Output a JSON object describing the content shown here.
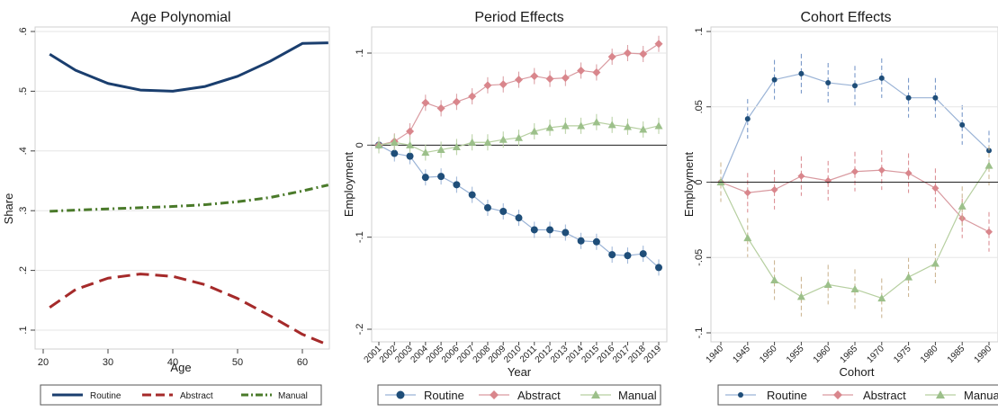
{
  "panels": [
    {
      "title": "Age Polynomial",
      "xlabel": "Age",
      "ylabel": "Share"
    },
    {
      "title": "Period Effects",
      "xlabel": "Year",
      "ylabel": "Employment"
    },
    {
      "title": "Cohort Effects",
      "xlabel": "Cohort",
      "ylabel": "Employment"
    }
  ],
  "legend_left": {
    "routine": "Routine",
    "abstract": "Abstract",
    "manual": "Manual"
  },
  "legend_mid": {
    "routine": "Routine",
    "abstract": "Abstract",
    "manual": "Manual"
  },
  "legend_right": {
    "routine": "Routine",
    "abstract": "Abstract",
    "manual": "Manual"
  },
  "colors": {
    "routine_dark": "#1a3e6e",
    "abstract_dark": "#a52a2a",
    "manual_dark": "#4a7a2a",
    "routine_light": "#9ab3d6",
    "abstract_light": "#d99aa0",
    "manual_light": "#b6cfa0",
    "routine_marker": "#1f4e79",
    "abstract_marker": "#d9868c",
    "manual_marker": "#9cc08a"
  },
  "chart_data": [
    {
      "type": "line",
      "title": "Age Polynomial",
      "xlabel": "Age",
      "ylabel": "Share",
      "xlim": [
        18,
        66
      ],
      "ylim": [
        0.07,
        0.61
      ],
      "xticks": [
        20,
        30,
        40,
        50,
        60
      ],
      "xtick_labels": [
        "20",
        "30",
        "40",
        "50",
        "60"
      ],
      "yticks": [
        0.1,
        0.2,
        0.3,
        0.4,
        0.5,
        0.6
      ],
      "ytick_labels": [
        ".1",
        ".2",
        ".3",
        ".4",
        ".5",
        ".6"
      ],
      "grid": true,
      "legend": "bottom",
      "x": [
        21,
        25,
        30,
        35,
        40,
        45,
        50,
        55,
        60,
        64
      ],
      "series": [
        {
          "name": "Routine",
          "values": [
            0.562,
            0.535,
            0.513,
            0.502,
            0.5,
            0.508,
            0.525,
            0.55,
            0.58,
            0.581
          ]
        },
        {
          "name": "Abstract",
          "values": [
            0.138,
            0.168,
            0.187,
            0.194,
            0.19,
            0.176,
            0.153,
            0.124,
            0.093,
            0.075
          ]
        },
        {
          "name": "Manual",
          "values": [
            0.299,
            0.301,
            0.303,
            0.305,
            0.307,
            0.31,
            0.315,
            0.322,
            0.333,
            0.343
          ]
        }
      ]
    },
    {
      "type": "line",
      "title": "Period Effects",
      "xlabel": "Year",
      "ylabel": "Employment",
      "ylim": [
        -0.205,
        0.13
      ],
      "yticks": [
        -0.2,
        -0.1,
        0,
        0.1
      ],
      "ytick_labels": [
        "-.2",
        "-.1",
        "0",
        ".1"
      ],
      "grid": true,
      "legend": "bottom",
      "categories": [
        "2001",
        "2002",
        "2003",
        "2004",
        "2005",
        "2006",
        "2007",
        "2008",
        "2009",
        "2010",
        "2011",
        "2012",
        "2013",
        "2014",
        "2015",
        "2016",
        "2017",
        "2018",
        "2019"
      ],
      "series": [
        {
          "name": "Routine",
          "values": [
            0,
            -0.009,
            -0.012,
            -0.035,
            -0.034,
            -0.043,
            -0.054,
            -0.068,
            -0.072,
            -0.079,
            -0.092,
            -0.092,
            -0.095,
            -0.104,
            -0.105,
            -0.119,
            -0.12,
            -0.118,
            -0.133
          ]
        },
        {
          "name": "Abstract",
          "values": [
            0,
            0.004,
            0.015,
            0.046,
            0.04,
            0.047,
            0.053,
            0.065,
            0.066,
            0.071,
            0.075,
            0.072,
            0.073,
            0.081,
            0.079,
            0.096,
            0.1,
            0.099,
            0.11
          ]
        },
        {
          "name": "Manual",
          "values": [
            0,
            0.003,
            0.0,
            -0.008,
            -0.005,
            -0.002,
            0.003,
            0.003,
            0.006,
            0.008,
            0.015,
            0.019,
            0.021,
            0.021,
            0.025,
            0.022,
            0.02,
            0.017,
            0.021
          ]
        }
      ]
    },
    {
      "type": "line",
      "title": "Cohort Effects",
      "xlabel": "Cohort",
      "ylabel": "Employment",
      "ylim": [
        -0.105,
        0.105
      ],
      "yticks": [
        -0.1,
        -0.05,
        0,
        0.05,
        0.1
      ],
      "ytick_labels": [
        "-.1",
        "-.05",
        "0",
        ".05",
        ".1"
      ],
      "grid": true,
      "legend": "bottom",
      "categories": [
        "1940",
        "1945",
        "1950",
        "1955",
        "1960",
        "1965",
        "1970",
        "1975",
        "1980",
        "1985",
        "1990"
      ],
      "series": [
        {
          "name": "Routine",
          "values": [
            0,
            0.042,
            0.068,
            0.072,
            0.066,
            0.064,
            0.069,
            0.056,
            0.056,
            0.038,
            0.021
          ]
        },
        {
          "name": "Abstract",
          "values": [
            0,
            -0.007,
            -0.005,
            0.004,
            0.001,
            0.007,
            0.008,
            0.006,
            -0.004,
            -0.024,
            -0.033
          ]
        },
        {
          "name": "Manual",
          "values": [
            0,
            -0.037,
            -0.065,
            -0.076,
            -0.068,
            -0.071,
            -0.077,
            -0.063,
            -0.054,
            -0.016,
            0.011
          ]
        }
      ]
    }
  ]
}
